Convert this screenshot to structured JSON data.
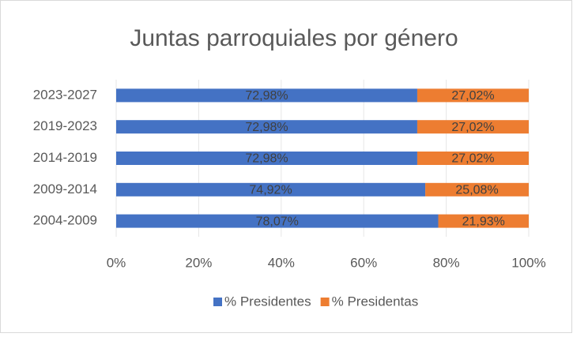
{
  "chart_data": {
    "type": "bar",
    "orientation": "horizontal",
    "stacked": true,
    "title": "Juntas parroquiales por género",
    "categories": [
      "2023-2027",
      "2019-2023",
      "2014-2019",
      "2009-2014",
      "2004-2009"
    ],
    "series": [
      {
        "name": "% Presidentes",
        "color": "#4472c4",
        "values": [
          72.98,
          72.98,
          72.98,
          74.92,
          78.07
        ],
        "value_labels": [
          "72,98%",
          "72,98%",
          "72,98%",
          "74,92%",
          "78,07%"
        ]
      },
      {
        "name": "% Presidentas",
        "color": "#ed7d31",
        "values": [
          27.02,
          27.02,
          27.02,
          25.08,
          21.93
        ],
        "value_labels": [
          "27,02%",
          "27,02%",
          "27,02%",
          "25,08%",
          "21,93%"
        ]
      }
    ],
    "xlim": [
      0,
      100
    ],
    "xticks": [
      {
        "value": 0,
        "label": "0%"
      },
      {
        "value": 20,
        "label": "20%"
      },
      {
        "value": 40,
        "label": "40%"
      },
      {
        "value": 60,
        "label": "60%"
      },
      {
        "value": 80,
        "label": "80%"
      },
      {
        "value": 100,
        "label": "100%"
      }
    ],
    "grid": true,
    "legend": "bottom"
  }
}
